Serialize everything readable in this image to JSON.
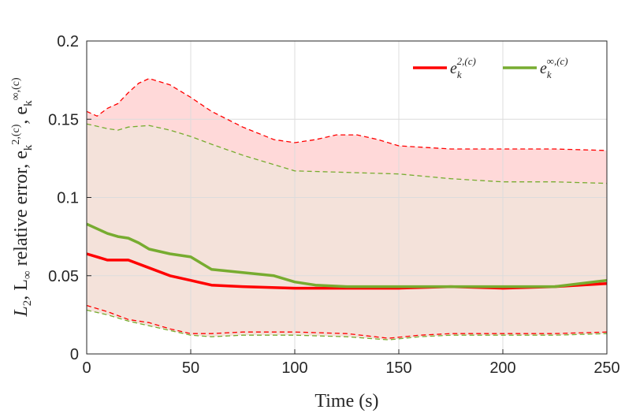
{
  "chart_data": {
    "type": "line",
    "title": "",
    "xlabel": "Time (s)",
    "ylabel_parts": [
      "L",
      "2",
      ", L",
      "∞",
      " relative error, e",
      "k",
      "2,(c)",
      ", e",
      "k",
      "∞,(c)"
    ],
    "xlim": [
      0,
      250
    ],
    "ylim": [
      0,
      0.2
    ],
    "xticks": [
      "0",
      "50",
      "100",
      "150",
      "200",
      "250"
    ],
    "yticks": [
      "0",
      "0.05",
      "0.1",
      "0.15",
      "0.2"
    ],
    "grid": true,
    "legend_position": "top-right",
    "legend": [
      {
        "base": "e",
        "sub": "k",
        "sup": "2,(c)",
        "color": "#ff0000"
      },
      {
        "base": "e",
        "sub": "k",
        "sup": "∞,(c)",
        "color": "#77ac30"
      }
    ],
    "series": [
      {
        "key": "l2",
        "color": "#ff0000",
        "band_color": "#ffd9d9",
        "x": [
          0,
          10,
          20,
          30,
          40,
          50,
          60,
          75,
          100,
          125,
          150,
          175,
          200,
          225,
          250
        ],
        "y": [
          0.064,
          0.06,
          0.06,
          0.055,
          0.05,
          0.047,
          0.044,
          0.043,
          0.042,
          0.042,
          0.042,
          0.043,
          0.042,
          0.043,
          0.045
        ],
        "upper_x": [
          0,
          5,
          10,
          15,
          20,
          25,
          30,
          40,
          50,
          60,
          75,
          90,
          100,
          110,
          120,
          130,
          140,
          150,
          175,
          200,
          225,
          250
        ],
        "upper_y": [
          0.155,
          0.152,
          0.157,
          0.16,
          0.167,
          0.173,
          0.176,
          0.172,
          0.164,
          0.155,
          0.145,
          0.137,
          0.135,
          0.137,
          0.14,
          0.14,
          0.137,
          0.133,
          0.131,
          0.131,
          0.131,
          0.13
        ],
        "lower_x": [
          0,
          10,
          20,
          30,
          40,
          50,
          60,
          75,
          100,
          125,
          145,
          160,
          175,
          200,
          225,
          250
        ],
        "lower_y": [
          0.031,
          0.027,
          0.022,
          0.02,
          0.016,
          0.013,
          0.013,
          0.014,
          0.014,
          0.013,
          0.01,
          0.012,
          0.013,
          0.013,
          0.013,
          0.014
        ]
      },
      {
        "key": "linf",
        "color": "#77ac30",
        "band_color": "#f4e2da",
        "x": [
          0,
          5,
          10,
          15,
          20,
          25,
          30,
          40,
          50,
          60,
          75,
          90,
          100,
          110,
          125,
          150,
          175,
          200,
          225,
          250
        ],
        "y": [
          0.083,
          0.08,
          0.077,
          0.075,
          0.074,
          0.071,
          0.067,
          0.064,
          0.062,
          0.054,
          0.052,
          0.05,
          0.046,
          0.044,
          0.043,
          0.043,
          0.043,
          0.043,
          0.043,
          0.047
        ],
        "upper_x": [
          0,
          10,
          15,
          20,
          30,
          40,
          50,
          60,
          75,
          100,
          125,
          150,
          175,
          200,
          225,
          250
        ],
        "upper_y": [
          0.147,
          0.144,
          0.143,
          0.145,
          0.146,
          0.143,
          0.139,
          0.134,
          0.127,
          0.117,
          0.116,
          0.115,
          0.112,
          0.11,
          0.11,
          0.109
        ],
        "lower_x": [
          0,
          10,
          20,
          30,
          40,
          50,
          60,
          75,
          100,
          125,
          145,
          160,
          175,
          200,
          225,
          250
        ],
        "lower_y": [
          0.028,
          0.025,
          0.021,
          0.018,
          0.015,
          0.012,
          0.011,
          0.012,
          0.012,
          0.011,
          0.009,
          0.011,
          0.012,
          0.012,
          0.012,
          0.013
        ]
      }
    ]
  }
}
